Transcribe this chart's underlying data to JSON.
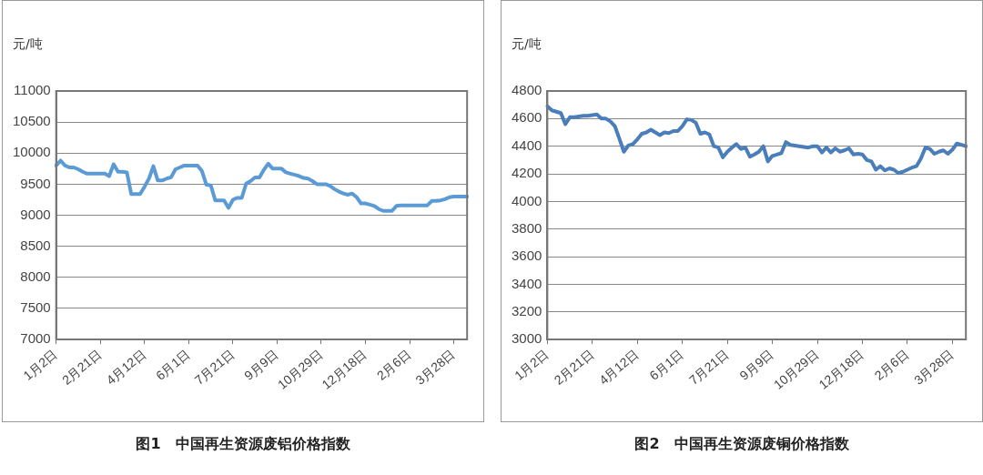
{
  "chart_data": [
    {
      "type": "line",
      "title": "图1　中国再生资源废铝价格指数",
      "ylabel": "元/吨",
      "marker": "none",
      "grid": "y",
      "categories": [
        "1月2日",
        null,
        null,
        null,
        null,
        null,
        null,
        null,
        null,
        null,
        "2月21日",
        null,
        null,
        null,
        null,
        null,
        null,
        null,
        null,
        null,
        "4月12日",
        null,
        null,
        null,
        null,
        null,
        null,
        null,
        null,
        null,
        "6月1日",
        null,
        null,
        null,
        null,
        null,
        null,
        null,
        null,
        null,
        "7月21日",
        null,
        null,
        null,
        null,
        null,
        null,
        null,
        null,
        null,
        "9月9日",
        null,
        null,
        null,
        null,
        null,
        null,
        null,
        null,
        null,
        "10月29日",
        null,
        null,
        null,
        null,
        null,
        null,
        null,
        null,
        null,
        "12月18日",
        null,
        null,
        null,
        null,
        null,
        null,
        null,
        null,
        null,
        "2月6日",
        null,
        null,
        null,
        null,
        null,
        null,
        null,
        null,
        null,
        "3月28日",
        null,
        null,
        null
      ],
      "ylim": [
        7000,
        11000
      ],
      "yticks": [
        7000,
        7500,
        8000,
        8500,
        9000,
        9500,
        10000,
        10500,
        11000
      ],
      "series": [
        {
          "color": "#5b9bd5",
          "values": [
            9800,
            9880,
            9800,
            9770,
            9770,
            9740,
            9700,
            9670,
            9670,
            9670,
            9670,
            9670,
            9630,
            9820,
            9700,
            9700,
            9690,
            9340,
            9340,
            9340,
            9460,
            9590,
            9790,
            9560,
            9560,
            9590,
            9610,
            9740,
            9770,
            9800,
            9800,
            9800,
            9800,
            9710,
            9490,
            9480,
            9240,
            9240,
            9240,
            9120,
            9250,
            9280,
            9280,
            9510,
            9550,
            9610,
            9610,
            9730,
            9830,
            9750,
            9750,
            9750,
            9690,
            9670,
            9650,
            9630,
            9600,
            9590,
            9550,
            9500,
            9500,
            9500,
            9470,
            9420,
            9380,
            9350,
            9330,
            9350,
            9290,
            9190,
            9190,
            9170,
            9150,
            9100,
            9070,
            9070,
            9070,
            9150,
            9160,
            9160,
            9160,
            9160,
            9160,
            9160,
            9160,
            9230,
            9230,
            9240,
            9260,
            9290,
            9300,
            9300,
            9300,
            9300
          ]
        }
      ]
    },
    {
      "type": "line",
      "title": "图2　中国再生资源废铜价格指数",
      "ylabel": "元/吨",
      "marker": "none",
      "grid": "y",
      "categories": [
        "1月2日",
        null,
        null,
        null,
        null,
        null,
        null,
        null,
        null,
        null,
        "2月21日",
        null,
        null,
        null,
        null,
        null,
        null,
        null,
        null,
        null,
        "4月12日",
        null,
        null,
        null,
        null,
        null,
        null,
        null,
        null,
        null,
        "6月1日",
        null,
        null,
        null,
        null,
        null,
        null,
        null,
        null,
        null,
        "7月21日",
        null,
        null,
        null,
        null,
        null,
        null,
        null,
        null,
        null,
        "9月9日",
        null,
        null,
        null,
        null,
        null,
        null,
        null,
        null,
        null,
        "10月29日",
        null,
        null,
        null,
        null,
        null,
        null,
        null,
        null,
        null,
        "12月18日",
        null,
        null,
        null,
        null,
        null,
        null,
        null,
        null,
        null,
        "2月6日",
        null,
        null,
        null,
        null,
        null,
        null,
        null,
        null,
        null,
        "3月28日",
        null,
        null,
        null
      ],
      "ylim": [
        3000,
        4800
      ],
      "yticks": [
        3000,
        3200,
        3400,
        3600,
        3800,
        4000,
        4200,
        4400,
        4600,
        4800
      ],
      "series": [
        {
          "color": "#4a7ebb",
          "values": [
            4690,
            4660,
            4650,
            4640,
            4560,
            4610,
            4610,
            4615,
            4620,
            4620,
            4625,
            4630,
            4600,
            4600,
            4580,
            4545,
            4455,
            4360,
            4405,
            4415,
            4450,
            4490,
            4500,
            4520,
            4500,
            4480,
            4500,
            4495,
            4510,
            4510,
            4545,
            4595,
            4590,
            4570,
            4490,
            4500,
            4485,
            4400,
            4390,
            4320,
            4360,
            4390,
            4415,
            4380,
            4390,
            4325,
            4340,
            4360,
            4400,
            4290,
            4330,
            4340,
            4350,
            4430,
            4410,
            4405,
            4400,
            4395,
            4390,
            4400,
            4400,
            4355,
            4390,
            4355,
            4385,
            4360,
            4370,
            4385,
            4340,
            4345,
            4340,
            4300,
            4290,
            4230,
            4255,
            4225,
            4240,
            4230,
            4205,
            4215,
            4230,
            4245,
            4255,
            4310,
            4390,
            4380,
            4345,
            4360,
            4370,
            4345,
            4375,
            4420,
            4410,
            4400
          ]
        }
      ]
    }
  ]
}
